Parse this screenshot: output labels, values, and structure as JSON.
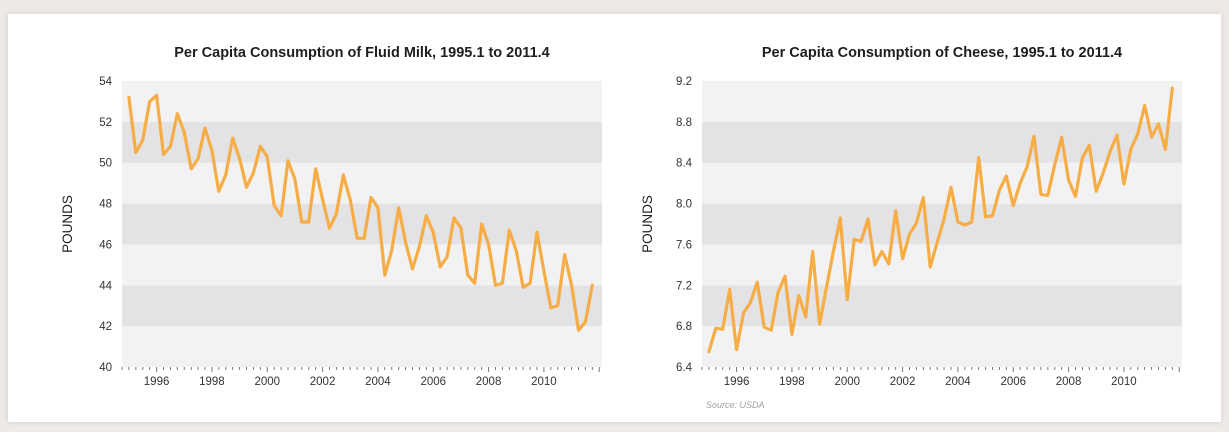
{
  "chart_data": [
    {
      "type": "line",
      "title": "Per Capita Consumption of Fluid Milk, 1995.1 to 2011.4",
      "ylabel": "POUNDS",
      "xlabel": "",
      "ylim": [
        40,
        54
      ],
      "yticks": [
        40,
        42,
        44,
        46,
        48,
        50,
        52,
        54
      ],
      "xlim": [
        1994.75,
        2012.1
      ],
      "xticks": [
        1996,
        1998,
        2000,
        2002,
        2004,
        2006,
        2008,
        2010
      ],
      "x_start": 1995.0,
      "x_step": 0.25,
      "grid": "alternating horizontal bands",
      "line_color": "#f6ad46",
      "series": [
        {
          "values": [
            53.2,
            50.5,
            51.1,
            53.0,
            53.3,
            50.4,
            50.8,
            52.4,
            51.5,
            49.7,
            50.2,
            51.7,
            50.6,
            48.6,
            49.4,
            51.2,
            50.2,
            48.8,
            49.5,
            50.8,
            50.3,
            47.9,
            47.4,
            50.1,
            49.2,
            47.1,
            47.1,
            49.7,
            48.2,
            46.8,
            47.5,
            49.4,
            48.2,
            46.3,
            46.3,
            48.3,
            47.8,
            44.5,
            45.7,
            47.8,
            46.1,
            44.8,
            45.9,
            47.4,
            46.6,
            44.9,
            45.4,
            47.3,
            46.8,
            44.5,
            44.1,
            47.0,
            46.0,
            44.0,
            44.1,
            46.7,
            45.7,
            43.9,
            44.1,
            46.6,
            44.7,
            42.9,
            43.0,
            45.5,
            44.0,
            41.8,
            42.2,
            44.0
          ]
        }
      ]
    },
    {
      "type": "line",
      "title": "Per Capita Consumption of Cheese, 1995.1 to 2011.4",
      "ylabel": "POUNDS",
      "xlabel": "",
      "ylim": [
        6.4,
        9.2
      ],
      "yticks": [
        "6.4",
        "6.8",
        "7.2",
        "7.6",
        "8.0",
        "8.4",
        "8.8",
        "9.2"
      ],
      "xlim": [
        1994.75,
        2012.1
      ],
      "xticks": [
        1996,
        1998,
        2000,
        2002,
        2004,
        2006,
        2008,
        2010
      ],
      "x_start": 1995.0,
      "x_step": 0.25,
      "grid": "alternating horizontal bands",
      "line_color": "#f6ad46",
      "series": [
        {
          "values": [
            6.55,
            6.78,
            6.77,
            7.16,
            6.57,
            6.93,
            7.03,
            7.23,
            6.79,
            6.76,
            7.13,
            7.29,
            6.72,
            7.1,
            6.89,
            7.53,
            6.82,
            7.18,
            7.53,
            7.86,
            7.06,
            7.65,
            7.63,
            7.85,
            7.4,
            7.53,
            7.41,
            7.93,
            7.46,
            7.7,
            7.81,
            8.06,
            7.38,
            7.62,
            7.85,
            8.16,
            7.82,
            7.79,
            7.82,
            8.45,
            7.87,
            7.88,
            8.13,
            8.27,
            7.98,
            8.2,
            8.36,
            8.66,
            8.09,
            8.08,
            8.38,
            8.65,
            8.23,
            8.07,
            8.45,
            8.57,
            8.12,
            8.3,
            8.51,
            8.67,
            8.19,
            8.53,
            8.68,
            8.96,
            8.65,
            8.78,
            8.53,
            9.13
          ]
        }
      ]
    }
  ],
  "source_note": "Source: USDA"
}
